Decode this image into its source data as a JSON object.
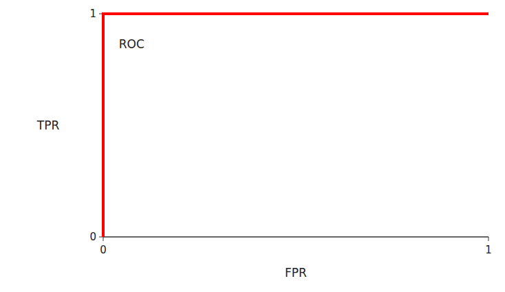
{
  "chart_data": {
    "type": "line",
    "x": [
      0,
      0,
      1
    ],
    "values": [
      0,
      1,
      1
    ],
    "color": "#ff0000",
    "xlabel": "FPR",
    "ylabel": "TPR",
    "annotation": "ROC",
    "xlim": [
      0,
      1
    ],
    "ylim": [
      0,
      1
    ],
    "xticks": [
      0,
      1
    ],
    "yticks": [
      0,
      1
    ],
    "grid": false
  }
}
